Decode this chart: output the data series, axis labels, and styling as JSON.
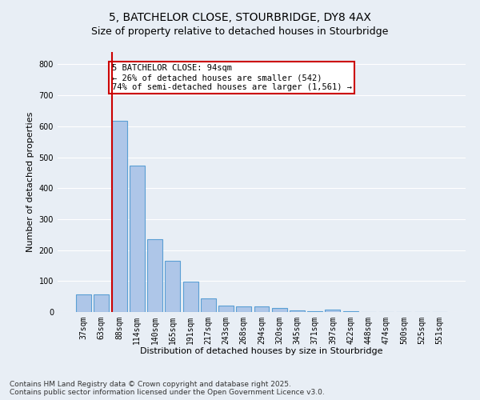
{
  "title": "5, BATCHELOR CLOSE, STOURBRIDGE, DY8 4AX",
  "subtitle": "Size of property relative to detached houses in Stourbridge",
  "xlabel": "Distribution of detached houses by size in Stourbridge",
  "ylabel": "Number of detached properties",
  "footer_line1": "Contains HM Land Registry data © Crown copyright and database right 2025.",
  "footer_line2": "Contains public sector information licensed under the Open Government Licence v3.0.",
  "categories": [
    "37sqm",
    "63sqm",
    "88sqm",
    "114sqm",
    "140sqm",
    "165sqm",
    "191sqm",
    "217sqm",
    "243sqm",
    "268sqm",
    "294sqm",
    "320sqm",
    "345sqm",
    "371sqm",
    "397sqm",
    "422sqm",
    "448sqm",
    "474sqm",
    "500sqm",
    "525sqm",
    "551sqm"
  ],
  "values": [
    58,
    58,
    617,
    473,
    236,
    165,
    97,
    45,
    20,
    18,
    18,
    12,
    5,
    3,
    8,
    2,
    1,
    1,
    1,
    1,
    1
  ],
  "bar_color": "#aec6e8",
  "bar_edge_color": "#5a9fd4",
  "red_line_index": 2,
  "annotation_text": "5 BATCHELOR CLOSE: 94sqm\n← 26% of detached houses are smaller (542)\n74% of semi-detached houses are larger (1,561) →",
  "annotation_box_color": "#ffffff",
  "annotation_box_edge": "#cc0000",
  "ylim": [
    0,
    840
  ],
  "yticks": [
    0,
    100,
    200,
    300,
    400,
    500,
    600,
    700,
    800
  ],
  "bg_color": "#e8eef5",
  "plot_bg_color": "#e8eef5",
  "grid_color": "#ffffff",
  "title_fontsize": 10,
  "subtitle_fontsize": 9,
  "axis_label_fontsize": 8,
  "tick_fontsize": 7,
  "footer_fontsize": 6.5,
  "annotation_fontsize": 7.5
}
